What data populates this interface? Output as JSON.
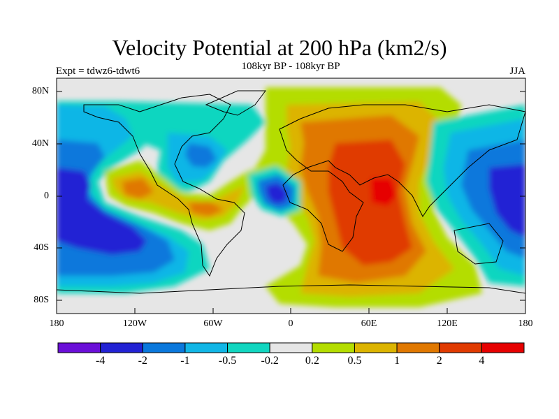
{
  "title": "Velocity Potential at 200 hPa (km2/s)",
  "subtitle": "108kyr BP - 108kyr BP",
  "left_label": "Expt = tdwz6-tdwt6",
  "right_label": "JJA",
  "lat_ticks": [
    "80N",
    "40N",
    "0",
    "40S",
    "80S"
  ],
  "lon_ticks": [
    "180",
    "120W",
    "60W",
    "0",
    "60E",
    "120E",
    "180"
  ],
  "colorbar": {
    "labels": [
      "-4",
      "-2",
      "-1",
      "-0.5",
      "-0.2",
      "0.2",
      "0.5",
      "1",
      "2",
      "4"
    ],
    "colors": [
      "#6a0fd8",
      "#2222d4",
      "#0a78dc",
      "#11b6e6",
      "#11d6c0",
      "#e6e6e6",
      "#b4dd00",
      "#dcb400",
      "#e07800",
      "#e03a00",
      "#e60000"
    ]
  }
}
